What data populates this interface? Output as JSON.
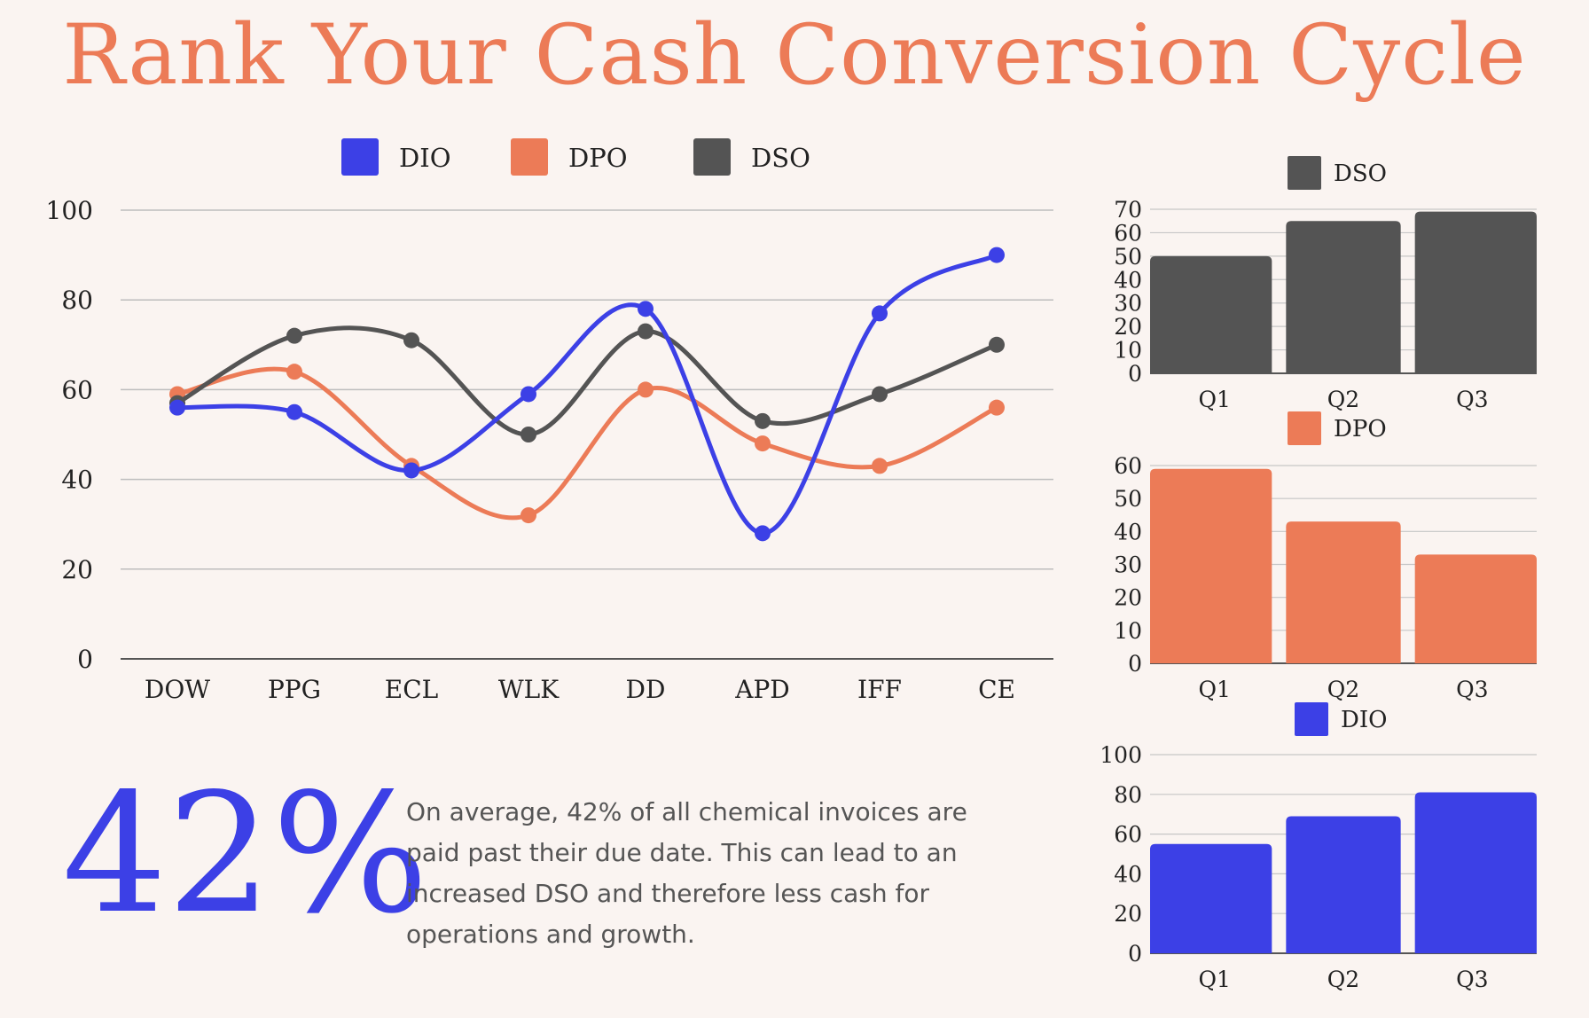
{
  "title": "Rank Your Cash Conversion Cycle",
  "colors": {
    "dio": "#3c40e6",
    "dpo": "#ec7b57",
    "dso": "#545454"
  },
  "chart_data": [
    {
      "type": "line",
      "title": "",
      "legend_position": "top",
      "categories": [
        "DOW",
        "PPG",
        "ECL",
        "WLK",
        "DD",
        "APD",
        "IFF",
        "CE"
      ],
      "ylim": [
        0,
        100
      ],
      "yticks": [
        0,
        20,
        40,
        60,
        80,
        100
      ],
      "series": [
        {
          "name": "DIO",
          "color_key": "dio",
          "values": [
            56,
            55,
            42,
            59,
            78,
            28,
            77,
            90
          ]
        },
        {
          "name": "DPO",
          "color_key": "dpo",
          "values": [
            59,
            64,
            43,
            32,
            60,
            48,
            43,
            56
          ]
        },
        {
          "name": "DSO",
          "color_key": "dso",
          "values": [
            57,
            72,
            71,
            50,
            73,
            53,
            59,
            70
          ]
        }
      ]
    },
    {
      "type": "bar",
      "legend": "DSO",
      "color_key": "dso",
      "categories": [
        "Q1",
        "Q2",
        "Q3"
      ],
      "values": [
        50,
        65,
        69
      ],
      "ylim": [
        0,
        70
      ],
      "yticks": [
        0,
        10,
        20,
        30,
        40,
        50,
        60,
        70
      ]
    },
    {
      "type": "bar",
      "legend": "DPO",
      "color_key": "dpo",
      "categories": [
        "Q1",
        "Q2",
        "Q3"
      ],
      "values": [
        59,
        43,
        33
      ],
      "ylim": [
        0,
        60
      ],
      "yticks": [
        0,
        10,
        20,
        30,
        40,
        50,
        60
      ]
    },
    {
      "type": "bar",
      "legend": "DIO",
      "color_key": "dio",
      "categories": [
        "Q1",
        "Q2",
        "Q3"
      ],
      "values": [
        55,
        69,
        81
      ],
      "ylim": [
        0,
        100
      ],
      "yticks": [
        0,
        20,
        40,
        60,
        80,
        100
      ]
    }
  ],
  "stat": {
    "value": "42%",
    "text": "On average, 42% of all chemical invoices are paid past their due date. This can lead to an increased DSO and therefore less cash for operations and growth."
  }
}
